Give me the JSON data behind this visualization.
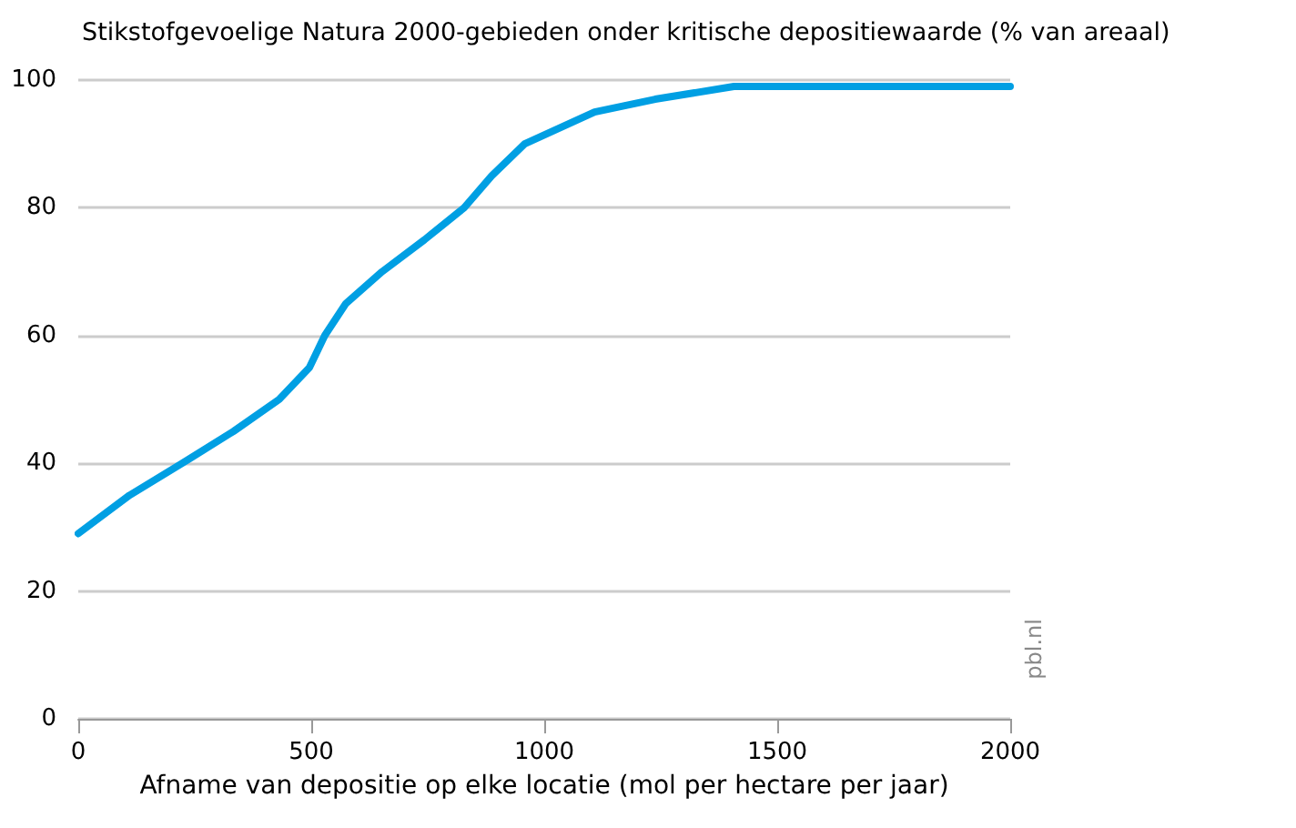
{
  "chart_data": {
    "type": "line",
    "title": "Stikstofgevoelige Natura 2000-gebieden onder kritische depositiewaarde (% van areaal)",
    "xlabel": "Afname van depositie op elke locatie (mol per hectare per jaar)",
    "x": [
      0,
      110,
      223,
      333,
      431,
      496,
      529,
      574,
      652,
      743,
      828,
      887,
      958,
      1108,
      1238,
      1407,
      2000
    ],
    "series": [
      {
        "color": "#009fe3",
        "values": [
          29,
          35,
          40,
          45,
          50,
          55,
          60,
          65,
          70,
          75,
          80,
          85,
          90,
          95,
          97,
          99,
          99
        ]
      }
    ],
    "xlim": [
      0,
      2000
    ],
    "xticks": [
      0,
      500,
      1000,
      1500,
      2000
    ],
    "ylim": [
      0,
      100
    ],
    "yticks": [
      0,
      20,
      40,
      60,
      80,
      100
    ],
    "grid": "y",
    "marker": "none",
    "line_style": "solid",
    "annotations": [
      "pbl.nl"
    ]
  }
}
